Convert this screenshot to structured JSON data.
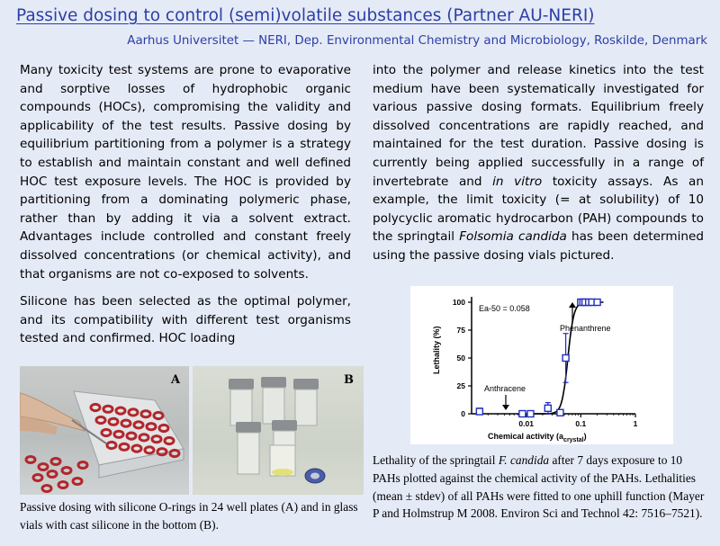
{
  "header": {
    "title": "Passive dosing to control (semi)volatile substances (Partner AU-NERI)",
    "affiliation": "Aarhus Universitet — NERI, Dep. Environmental Chemistry and Microbiology, Roskilde, Denmark"
  },
  "body": {
    "left_p1": "Many toxicity test systems are prone to evaporative and sorptive losses of hydrophobic organic compounds (HOCs), compromising the validity and applicability of the test results. Passive dosing by equilibrium partitioning from a polymer is a strategy to establish and maintain constant and well defined HOC test exposure levels. The HOC is provided by partitioning from a dominating polymeric phase, rather than by adding it via a solvent extract. Advantages include controlled and constant freely dissolved concentrations (or chemical activity), and that organisms are not co-exposed to solvents.",
    "left_p2": "Silicone has been selected as the optimal polymer, and its compatibility with different test organisms tested and confirmed. HOC loading",
    "right_p1_a": "into the polymer and release kinetics into the test medium have been systematically investigated for various passive dosing formats. Equilibrium freely dissolved concentrations are rapidly reached, and maintained for the test duration. Passive dosing is currently being applied successfully in a range of invertebrate and ",
    "right_p1_italic": "in vitro",
    "right_p1_b": " toxicity assays. As an example, the limit toxicity (= at solubility) of 10 polycyclic aromatic hydrocarbon (PAH) compounds to the springtail ",
    "right_p1_species": "Folsomia candida",
    "right_p1_c": " has been determined using the passive dosing vials pictured."
  },
  "photos": {
    "label_a": "A",
    "label_b": "B",
    "caption": "Passive dosing with silicone O-rings in 24 well plates (A) and in glass vials with cast silicone in the bottom (B)."
  },
  "figure_caption": {
    "part1": "Lethality of the springtail ",
    "species": "F. candida",
    "part2": " after 7 days exposure to 10 PAHs plotted against the chemical activity of the PAHs. Lethalities (mean ± stdev) of all PAHs were fitted to one uphill function (Mayer P and Holmstrup M 2008. Environ Sci and Technol 42: 7516–7521)."
  },
  "chart_data": {
    "type": "scatter",
    "xscale": "log",
    "xlim": [
      0.001,
      1
    ],
    "ylim": [
      0,
      100
    ],
    "xticks": [
      "0.01",
      "0.1",
      "1"
    ],
    "yticks": [
      "0",
      "25",
      "50",
      "75",
      "100"
    ],
    "xlabel_main": "Chemical activity (a",
    "xlabel_sub": "crystal",
    "xlabel_end": ")",
    "ylabel": "Lethality (%)",
    "annotation_fit": "Ea-50 = 0.058",
    "annotation_anthracene": "Anthracene",
    "annotation_phenanthrene": "Phenanthrene",
    "marker_color": "#1f2fbf",
    "points": [
      {
        "x": 0.0014,
        "y": 2,
        "err": 3
      },
      {
        "x": 0.0085,
        "y": 0,
        "err": 0
      },
      {
        "x": 0.012,
        "y": 0,
        "err": 2
      },
      {
        "x": 0.025,
        "y": 5,
        "err": 5
      },
      {
        "x": 0.042,
        "y": 1,
        "err": 2
      },
      {
        "x": 0.053,
        "y": 50,
        "err": 22
      },
      {
        "x": 0.1,
        "y": 100,
        "err": 0
      },
      {
        "x": 0.11,
        "y": 100,
        "err": 0
      },
      {
        "x": 0.12,
        "y": 100,
        "err": 0
      },
      {
        "x": 0.14,
        "y": 100,
        "err": 0
      },
      {
        "x": 0.16,
        "y": 100,
        "err": 0
      },
      {
        "x": 0.2,
        "y": 100,
        "err": 0
      }
    ],
    "fit": {
      "ec50": 0.058,
      "hill": 8
    }
  }
}
